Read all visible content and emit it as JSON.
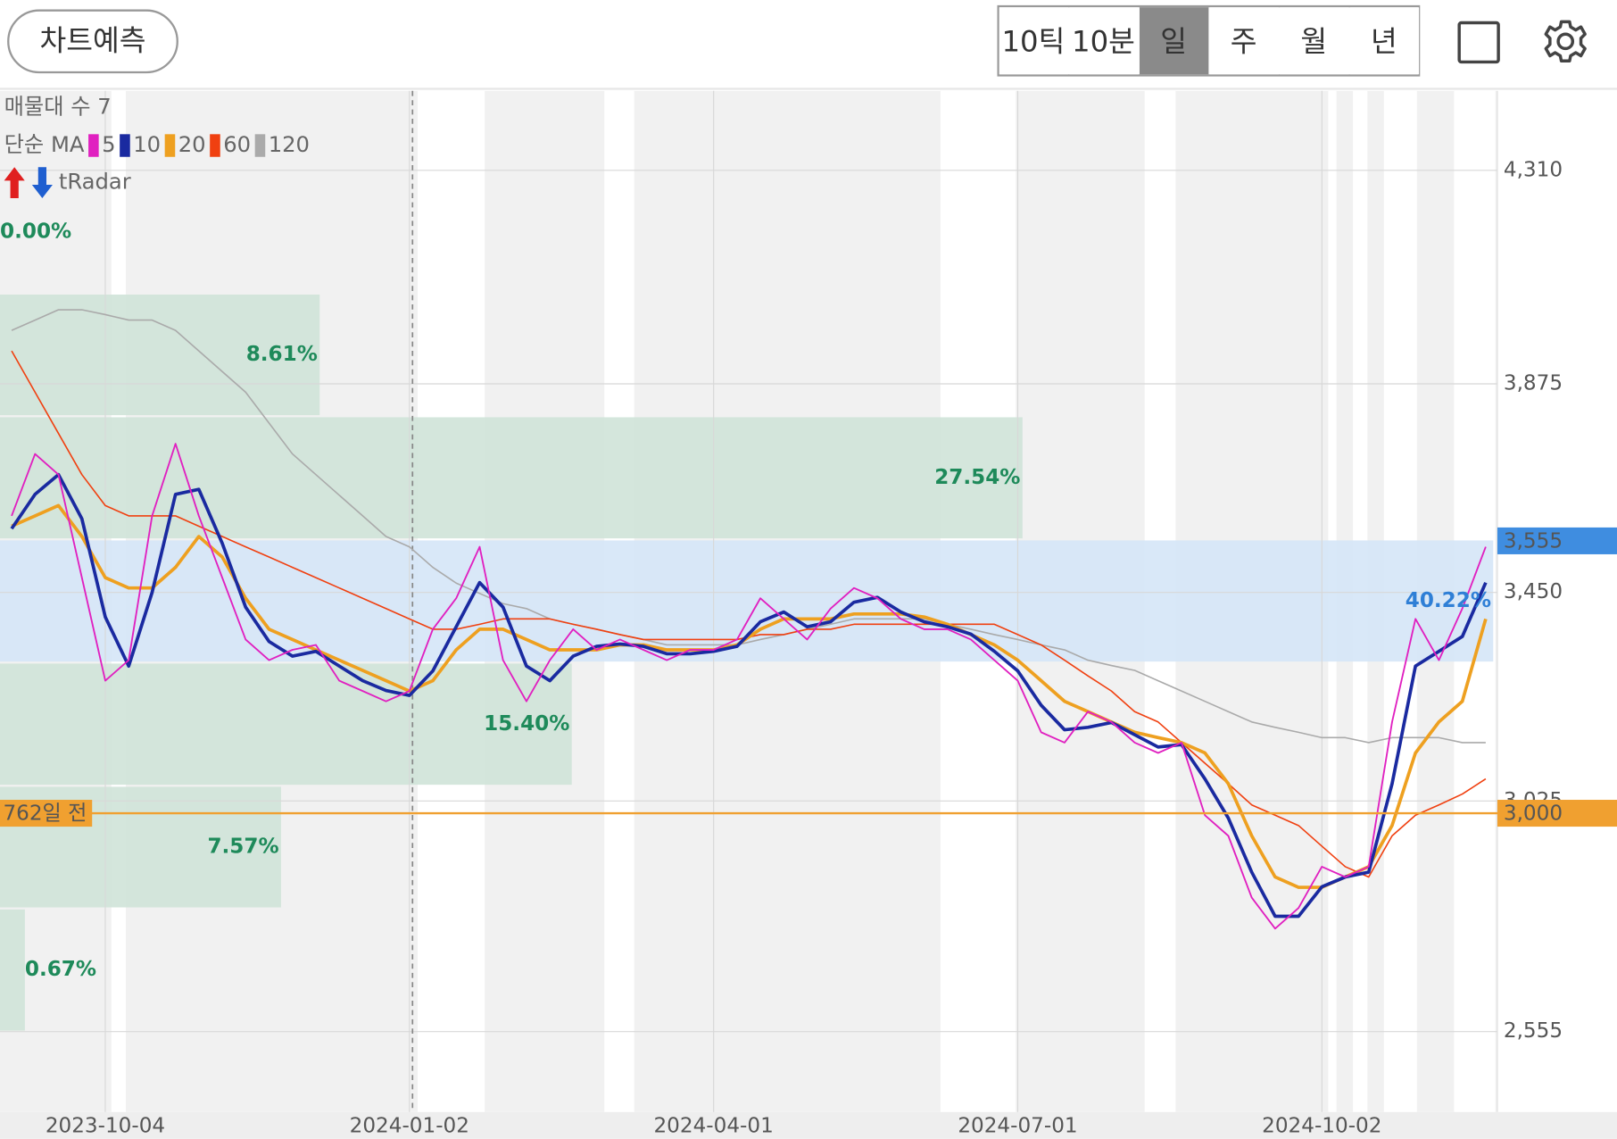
{
  "toolbar": {
    "predict_button": "차트예측",
    "periods": [
      "10틱",
      "10분",
      "일",
      "주",
      "월",
      "년"
    ],
    "selected_index": 2
  },
  "chart_data": {
    "type": "line",
    "categories": [
      null,
      null,
      null,
      null,
      "2023-10-04",
      null,
      null,
      null,
      null,
      null,
      null,
      null,
      null,
      null,
      null,
      null,
      null,
      "2024-01-02",
      null,
      null,
      null,
      null,
      null,
      null,
      null,
      null,
      null,
      null,
      null,
      null,
      "2024-04-01",
      null,
      null,
      null,
      null,
      null,
      null,
      null,
      null,
      null,
      null,
      null,
      null,
      "2024-07-01",
      null,
      null,
      null,
      null,
      null,
      null,
      null,
      null,
      null,
      null,
      null,
      null,
      "2024-10-02",
      null,
      null,
      null,
      null,
      null,
      null,
      null
    ],
    "ma_title": "단순 MA",
    "radar_title": "tRadar",
    "series": [
      {
        "name": "5",
        "color": "#e020c0",
        "width": 1.6,
        "values": [
          3606,
          3732,
          3690,
          3480,
          3270,
          3312,
          3606,
          3753,
          3606,
          3480,
          3354,
          3312,
          3333,
          3343,
          3270,
          3249,
          3228,
          3249,
          3375,
          3438,
          3543,
          3312,
          3228,
          3312,
          3375,
          3333,
          3354,
          3333,
          3312,
          3333,
          3333,
          3354,
          3438,
          3396,
          3354,
          3417,
          3459,
          3438,
          3396,
          3375,
          3375,
          3354,
          3312,
          3270,
          3165,
          3144,
          3207,
          3186,
          3144,
          3123,
          3144,
          2996,
          2954,
          2828,
          2765,
          2807,
          2891,
          2870,
          2891,
          3186,
          3396,
          3312,
          3417,
          3543
        ]
      },
      {
        "name": "10",
        "color": "#1a2aa0",
        "width": 3.2,
        "values": [
          3580,
          3650,
          3690,
          3600,
          3400,
          3300,
          3450,
          3650,
          3660,
          3550,
          3420,
          3350,
          3320,
          3330,
          3300,
          3270,
          3250,
          3240,
          3290,
          3380,
          3470,
          3420,
          3300,
          3270,
          3320,
          3340,
          3345,
          3340,
          3325,
          3325,
          3330,
          3340,
          3390,
          3410,
          3380,
          3390,
          3430,
          3440,
          3410,
          3390,
          3380,
          3365,
          3330,
          3290,
          3220,
          3170,
          3175,
          3185,
          3160,
          3135,
          3140,
          3070,
          2990,
          2880,
          2790,
          2790,
          2850,
          2870,
          2880,
          3060,
          3300,
          3330,
          3360,
          3470
        ]
      },
      {
        "name": "20",
        "color": "#eea020",
        "width": 3.2,
        "values": [
          3585,
          3606,
          3627,
          3564,
          3480,
          3459,
          3459,
          3501,
          3564,
          3522,
          3438,
          3375,
          3354,
          3333,
          3312,
          3291,
          3270,
          3249,
          3270,
          3333,
          3375,
          3375,
          3354,
          3333,
          3333,
          3333,
          3343,
          3343,
          3333,
          3333,
          3333,
          3343,
          3375,
          3396,
          3396,
          3396,
          3406,
          3406,
          3406,
          3400,
          3385,
          3364,
          3343,
          3312,
          3270,
          3228,
          3207,
          3186,
          3165,
          3154,
          3144,
          3123,
          3060,
          2954,
          2870,
          2849,
          2849,
          2870,
          2891,
          2975,
          3123,
          3186,
          3228,
          3396
        ]
      },
      {
        "name": "60",
        "color": "#f04010",
        "width": 1.4,
        "values": [
          3942,
          3858,
          3774,
          3690,
          3627,
          3606,
          3606,
          3606,
          3585,
          3564,
          3543,
          3522,
          3501,
          3480,
          3459,
          3438,
          3417,
          3396,
          3375,
          3375,
          3385,
          3396,
          3396,
          3396,
          3385,
          3375,
          3364,
          3354,
          3354,
          3354,
          3354,
          3354,
          3364,
          3364,
          3375,
          3375,
          3385,
          3385,
          3385,
          3385,
          3385,
          3385,
          3385,
          3364,
          3343,
          3312,
          3280,
          3249,
          3207,
          3186,
          3144,
          3102,
          3060,
          3017,
          2996,
          2975,
          2933,
          2891,
          2870,
          2954,
          2996,
          3017,
          3039,
          3070
        ]
      },
      {
        "name": "120",
        "color": "#aaaaaa",
        "width": 1.4,
        "values": [
          3984,
          4005,
          4026,
          4026,
          4016,
          4005,
          4005,
          3984,
          3942,
          3900,
          3858,
          3795,
          3732,
          3690,
          3648,
          3606,
          3564,
          3543,
          3501,
          3469,
          3448,
          3427,
          3417,
          3396,
          3385,
          3375,
          3364,
          3354,
          3343,
          3343,
          3343,
          3343,
          3354,
          3364,
          3375,
          3385,
          3396,
          3396,
          3396,
          3396,
          3385,
          3375,
          3364,
          3354,
          3343,
          3333,
          3312,
          3301,
          3291,
          3270,
          3249,
          3228,
          3207,
          3186,
          3175,
          3165,
          3154,
          3154,
          3144,
          3154,
          3154,
          3154,
          3144,
          3144
        ]
      }
    ],
    "ylim": [
      2391,
      4472
    ],
    "yticks": [
      {
        "value": 2555,
        "label": "2,555"
      },
      {
        "value": 3025,
        "label": "3,025"
      },
      {
        "value": 3450,
        "label": "3,450"
      },
      {
        "value": 3875,
        "label": "3,875"
      },
      {
        "value": 4310,
        "label": "4,310"
      }
    ],
    "volume_profile": {
      "title": "매물대 수 7",
      "bins": [
        2555,
        2806,
        3056,
        3307,
        3558,
        3809,
        4059,
        4310
      ],
      "values": [
        0.67,
        7.57,
        15.4,
        40.22,
        27.54,
        8.61,
        0
      ],
      "value_labels": [
        "0.67%",
        "7.57%",
        "15.40%",
        "40.22%",
        "27.54%",
        "8.61%",
        "0.00%"
      ],
      "color": "#cfe3d8",
      "highlight_color": "#d5e6f7"
    },
    "current_price": {
      "value": 3555,
      "label": "3,555",
      "color": "#3f8de0"
    },
    "reference_line": {
      "value": 3000,
      "label": "3,000",
      "note": "762일 전",
      "color": "#f0a030"
    }
  }
}
